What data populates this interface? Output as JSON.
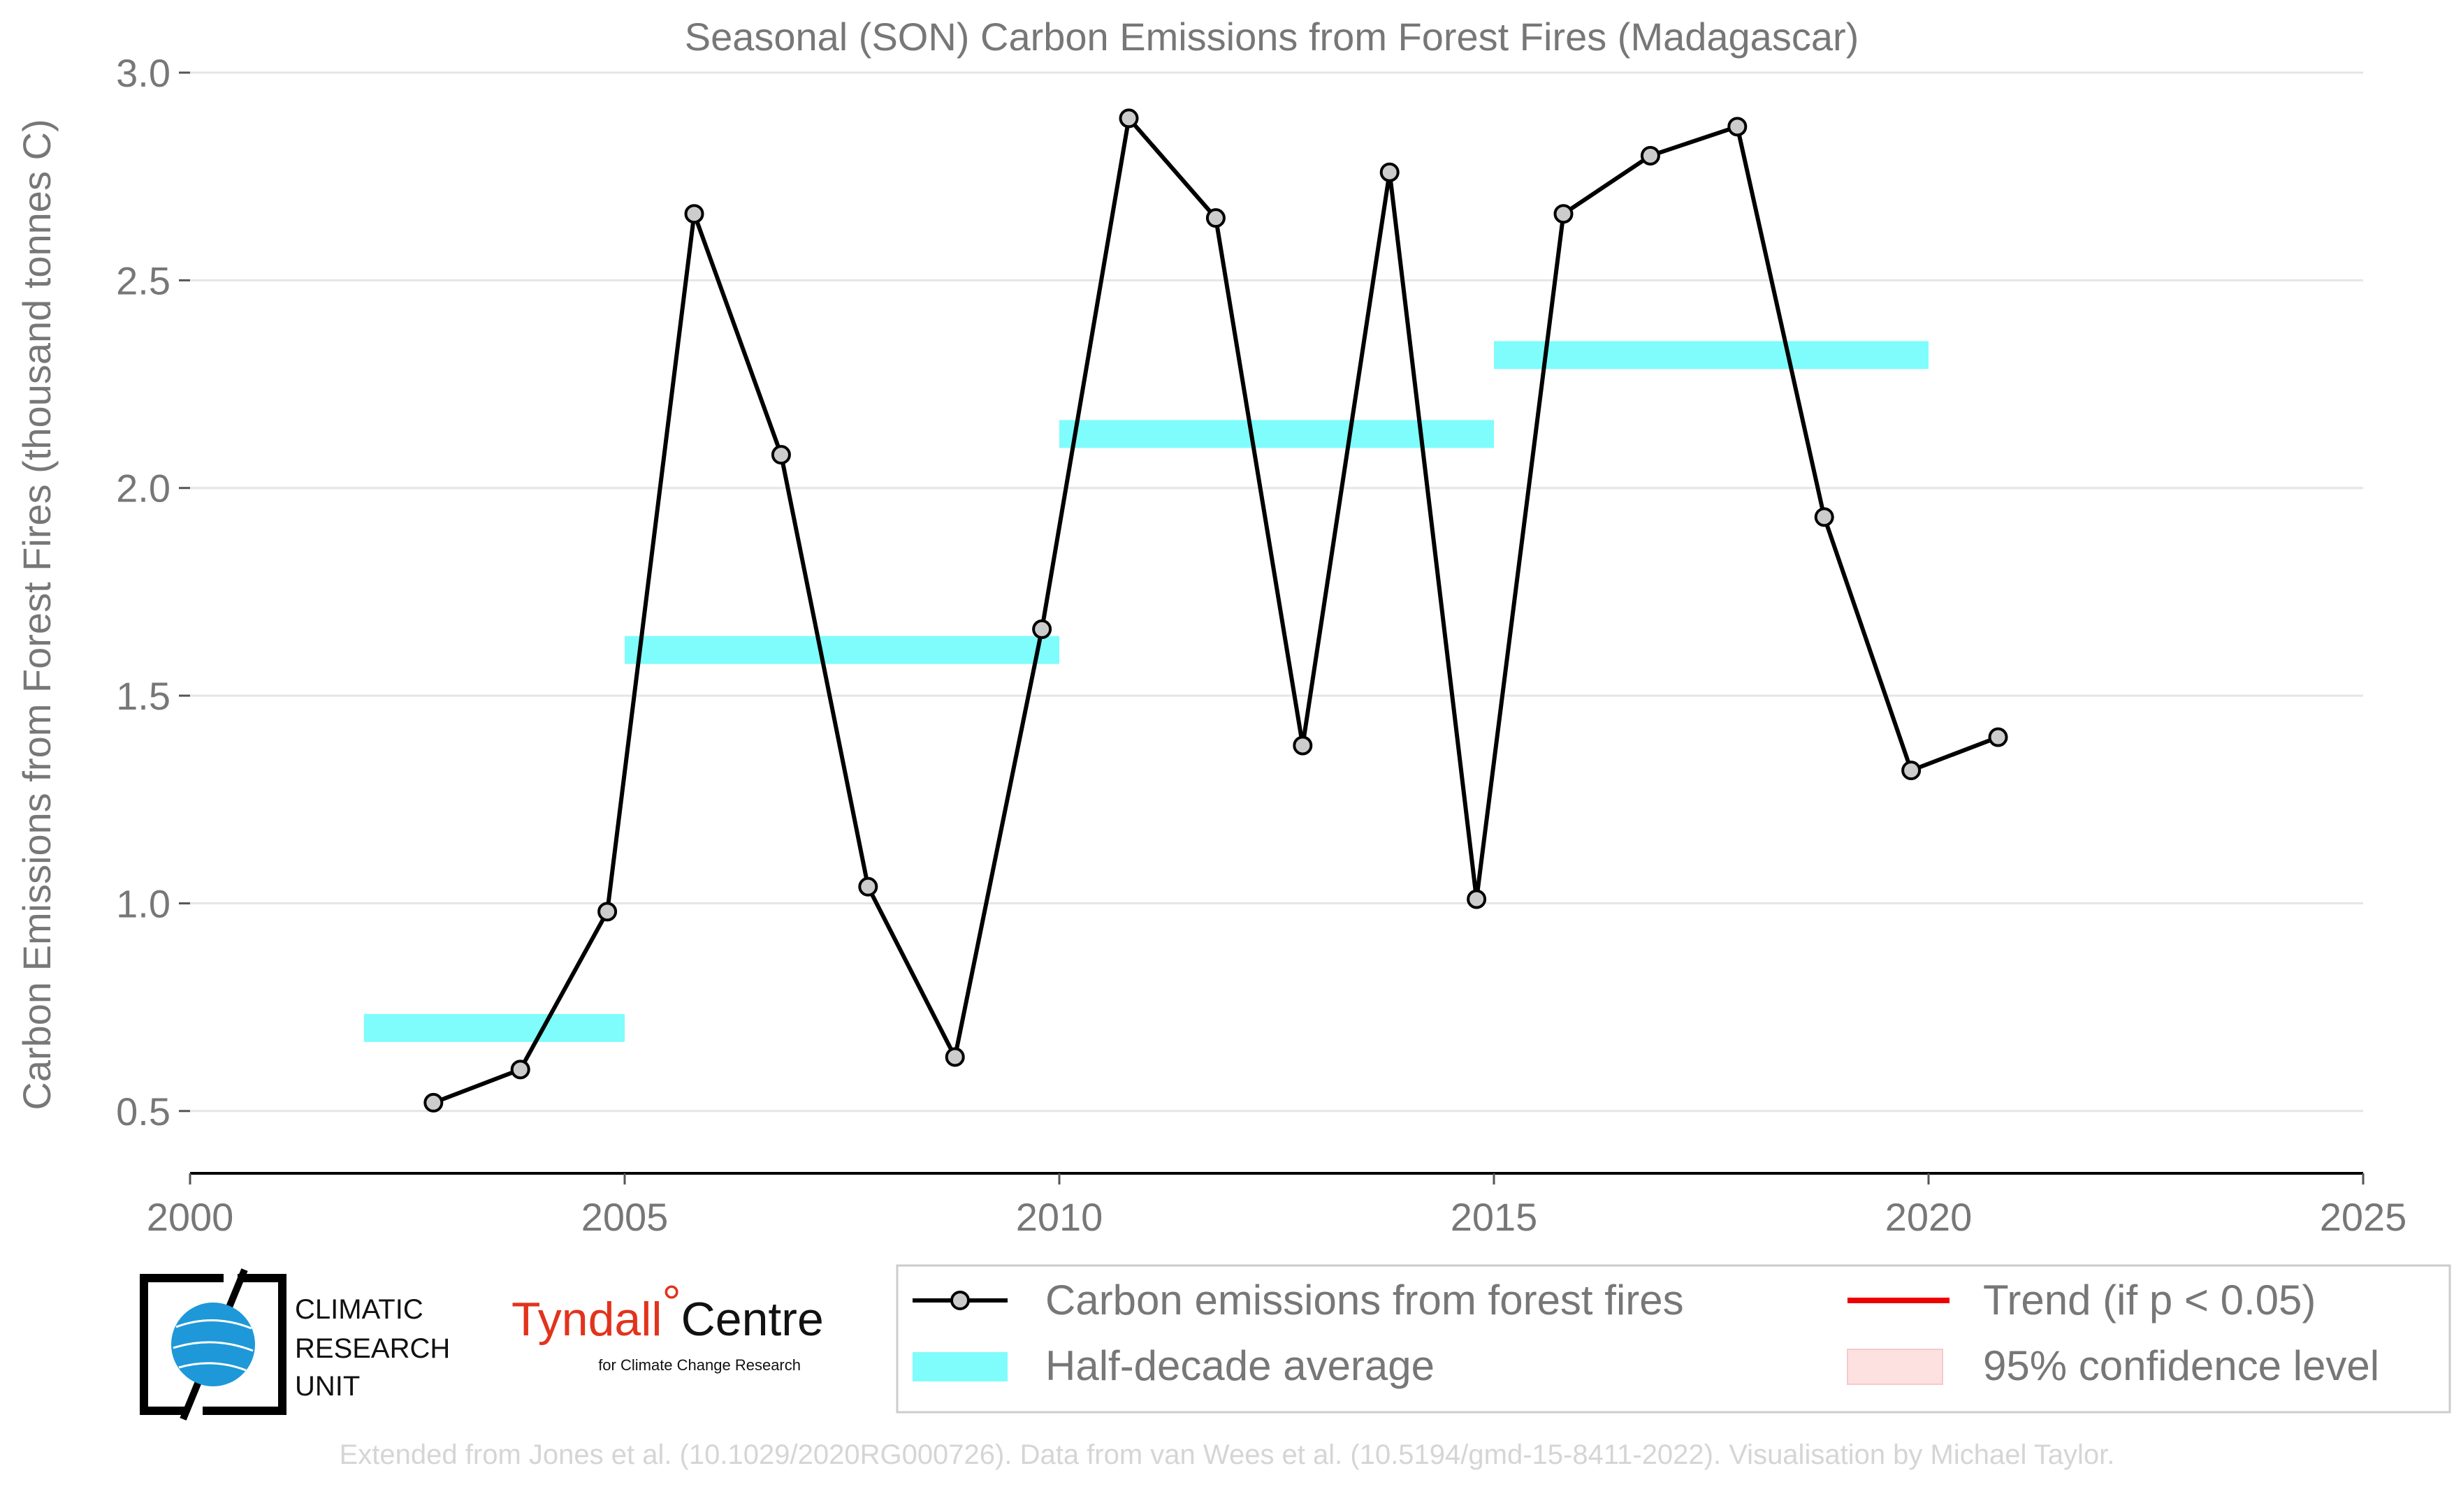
{
  "chart_data": {
    "type": "line",
    "title": "Seasonal (SON) Carbon Emissions from Forest Fires (Madagascar)",
    "xlabel": "",
    "ylabel": "Carbon Emissions from Forest Fires (thousand tonnes C)",
    "xlim": [
      2000,
      2025
    ],
    "ylim": [
      0.35,
      3.0
    ],
    "x_ticks": [
      2000,
      2005,
      2010,
      2015,
      2020,
      2025
    ],
    "y_ticks": [
      0.5,
      1.0,
      1.5,
      2.0,
      2.5,
      3.0
    ],
    "x_tick_labels": [
      "2000",
      "2005",
      "2010",
      "2015",
      "2020",
      "2025"
    ],
    "y_tick_labels": [
      "0.5",
      "1.0",
      "1.5",
      "2.0",
      "2.5",
      "3.0"
    ],
    "grid": "horizontal",
    "series": [
      {
        "name": "Carbon emissions from forest fires",
        "color": "#000000",
        "marker_fill": "#cccccc",
        "x": [
          2002.8,
          2003.8,
          2004.8,
          2005.8,
          2006.8,
          2007.8,
          2008.8,
          2009.8,
          2010.8,
          2011.8,
          2012.8,
          2013.8,
          2014.8,
          2015.8,
          2016.8,
          2017.8,
          2018.8,
          2019.8,
          2020.8
        ],
        "y": [
          0.52,
          0.6,
          0.98,
          2.66,
          2.08,
          1.04,
          0.63,
          1.66,
          2.89,
          2.65,
          1.38,
          2.76,
          1.01,
          2.66,
          2.8,
          2.87,
          1.93,
          1.32,
          1.4
        ]
      }
    ],
    "half_decade_average": {
      "name": "Half-decade average",
      "color": "#7ffcfc",
      "segments": [
        {
          "x0": 2002,
          "x1": 2005,
          "y": 0.7
        },
        {
          "x0": 2005,
          "x1": 2010,
          "y": 1.61
        },
        {
          "x0": 2010,
          "x1": 2015,
          "y": 2.13
        },
        {
          "x0": 2015,
          "x1": 2020,
          "y": 2.32
        }
      ]
    },
    "legend": {
      "placement": "bottom-right",
      "entries": [
        {
          "label": "Carbon emissions from forest fires",
          "kind": "line-marker",
          "color": "#000000"
        },
        {
          "label": "Trend (if p < 0.05)",
          "kind": "line",
          "color": "#ee0000"
        },
        {
          "label": "Half-decade average",
          "kind": "band",
          "color": "#7ffcfc"
        },
        {
          "label": "95% confidence level",
          "kind": "patch",
          "color": "#fde0e0"
        }
      ]
    }
  },
  "logos": {
    "cru_lines": [
      "CLIMATIC",
      "RESEARCH",
      "UNIT"
    ],
    "tyndall_a": "Tyndall",
    "tyndall_degree": "°",
    "tyndall_b": "Centre",
    "tyndall_sub": "for Climate Change Research"
  },
  "footer": "Extended from Jones et al. (10.1029/2020RG000726). Data from van Wees et al. (10.5194/gmd-15-8411-2022). Visualisation by Michael Taylor."
}
